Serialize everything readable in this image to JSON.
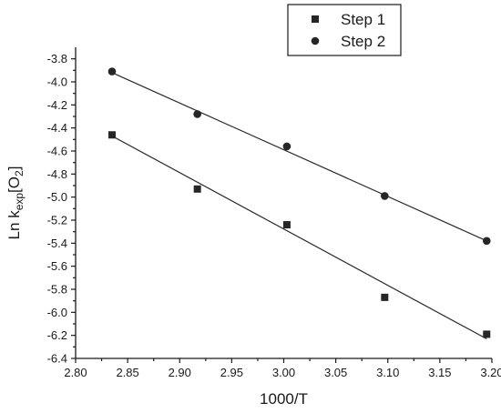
{
  "chart_data": {
    "type": "scatter",
    "xlabel": "1000/T",
    "ylabel": "Ln k",
    "ylabel_sub": "exp",
    "ylabel_tail": "[O",
    "ylabel_sub2": "2",
    "ylabel_close": "]",
    "xlim": [
      2.8,
      3.2
    ],
    "ylim": [
      -6.4,
      -3.7
    ],
    "x_ticks": [
      "2.80",
      "2.85",
      "2.90",
      "2.95",
      "3.00",
      "3.05",
      "3.10",
      "3.15",
      "3.20"
    ],
    "y_ticks": [
      "-3.8",
      "-4.0",
      "-4.2",
      "-4.4",
      "-4.6",
      "-4.8",
      "-5.0",
      "-5.2",
      "-5.4",
      "-5.6",
      "-5.8",
      "-6.0",
      "-6.2",
      "-6.4"
    ],
    "grid": false,
    "legend_position": "top-right",
    "series": [
      {
        "name": "Step 1",
        "marker": "square",
        "x": [
          2.835,
          2.917,
          3.003,
          3.097,
          3.195
        ],
        "y": [
          -4.46,
          -4.93,
          -5.24,
          -5.87,
          -6.19
        ],
        "fit": [
          [
            2.835,
            -4.47
          ],
          [
            3.195,
            -6.23
          ]
        ]
      },
      {
        "name": "Step 2",
        "marker": "circle",
        "x": [
          2.835,
          2.917,
          3.003,
          3.097,
          3.195
        ],
        "y": [
          -3.91,
          -4.28,
          -4.56,
          -4.99,
          -5.38
        ],
        "fit": [
          [
            2.835,
            -3.92
          ],
          [
            3.195,
            -5.38
          ]
        ]
      }
    ],
    "colors": {
      "marker": "#262626",
      "line": "#2a2a2a",
      "axis": "#1a1a1a"
    }
  }
}
